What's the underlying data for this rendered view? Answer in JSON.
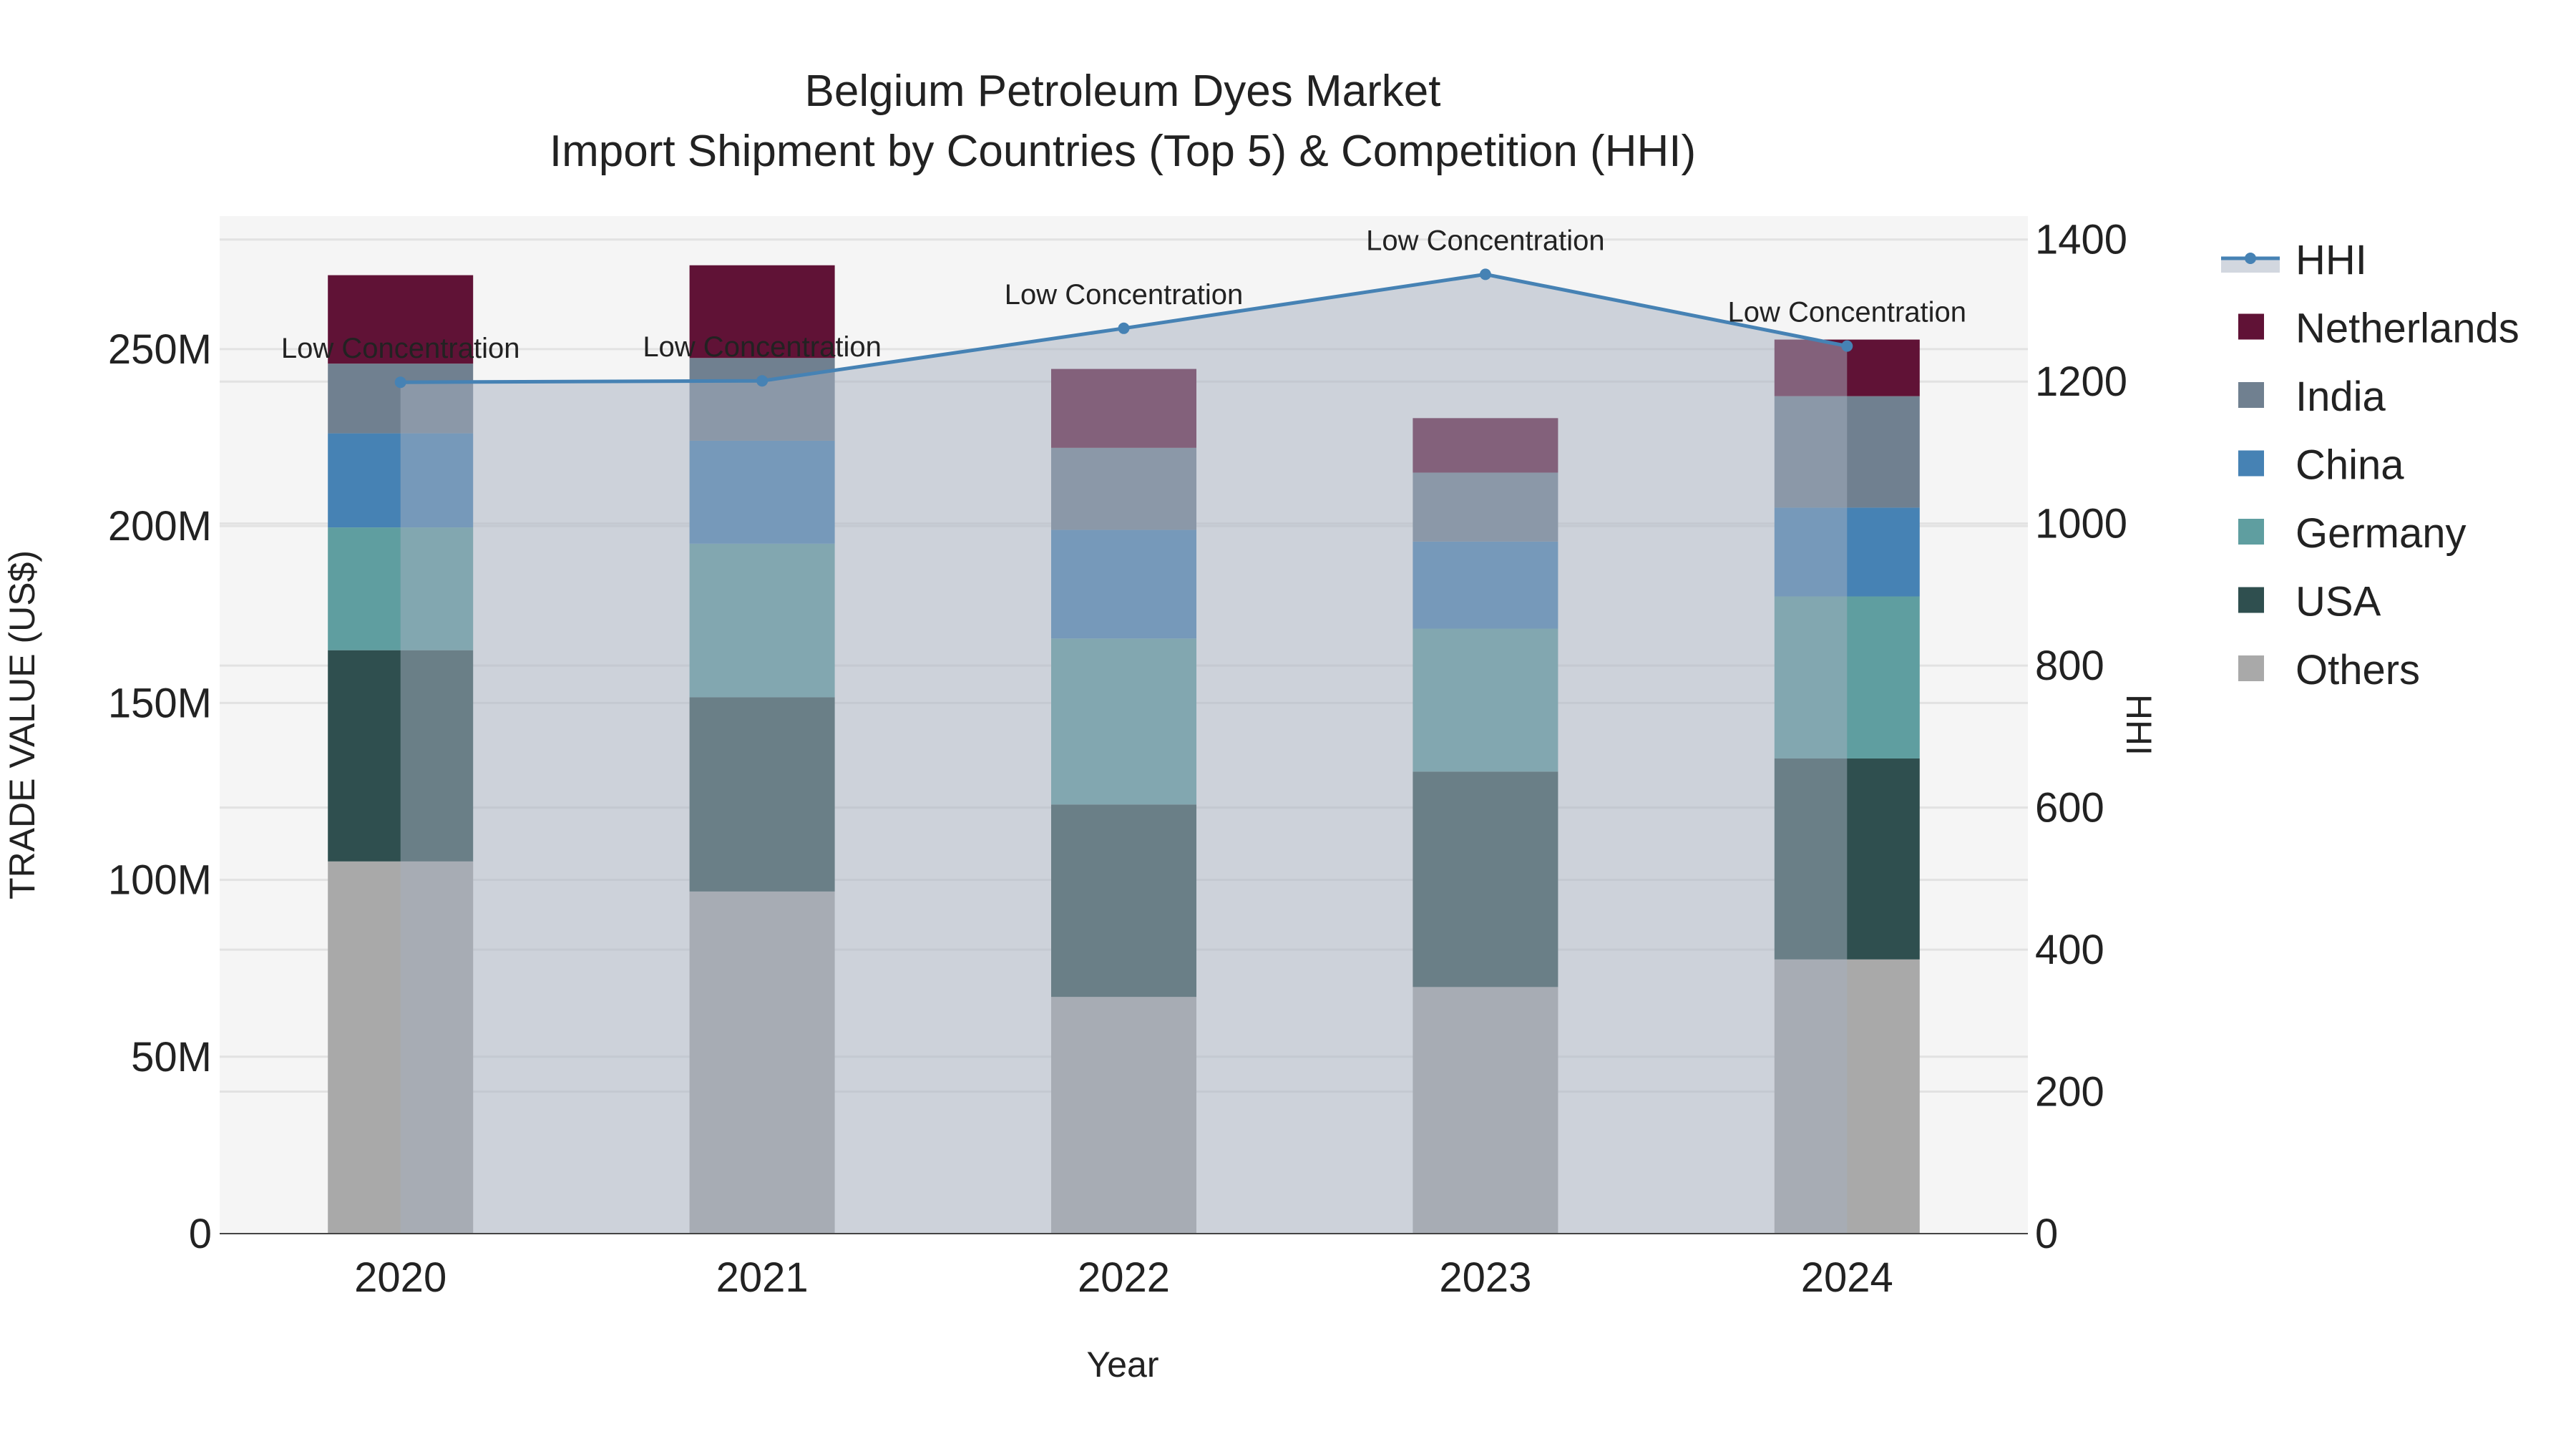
{
  "chart_data": {
    "type": "bar",
    "title": "Belgium Petroleum Dyes Market",
    "subtitle": "Import Shipment by Countries (Top 5) & Competition (HHI)",
    "xlabel": "Year",
    "ylabel": "TRADE VALUE (US$)",
    "y2label": "HHI",
    "categories": [
      "2020",
      "2021",
      "2022",
      "2023",
      "2024"
    ],
    "ylim": [
      0,
      287.6
    ],
    "y2lim": [
      0,
      1433
    ],
    "yticks": [
      0,
      50,
      100,
      150,
      200,
      250
    ],
    "ytick_labels": [
      "0",
      "50M",
      "100M",
      "150M",
      "200M",
      "250M"
    ],
    "y2ticks": [
      0,
      200,
      400,
      600,
      800,
      1000,
      1200,
      1400
    ],
    "y2tick_labels": [
      "0",
      "200",
      "400",
      "600",
      "800",
      "1000",
      "1200",
      "1400"
    ],
    "grid": true,
    "legend_position": "right",
    "value_unit": "million US$",
    "series": [
      {
        "name": "Others",
        "color": "#a9a9a9",
        "values": [
          105.2,
          96.7,
          66.9,
          69.7,
          77.5
        ]
      },
      {
        "name": "USA",
        "color": "#2f4f4f",
        "values": [
          59.7,
          54.9,
          54.4,
          60.9,
          56.8
        ]
      },
      {
        "name": "Germany",
        "color": "#5f9ea0",
        "values": [
          34.7,
          43.4,
          46.9,
          40.4,
          45.8
        ]
      },
      {
        "name": "China",
        "color": "#4682b4",
        "values": [
          26.6,
          29.1,
          30.7,
          24.6,
          25.1
        ]
      },
      {
        "name": "India",
        "color": "#708090",
        "values": [
          19.7,
          23.4,
          23.2,
          19.5,
          31.5
        ]
      },
      {
        "name": "Netherlands",
        "color": "#601236",
        "values": [
          25.0,
          26.2,
          22.3,
          15.4,
          16.0
        ]
      }
    ],
    "hhi": {
      "name": "HHI",
      "color": "#4682b4",
      "values": [
        1199,
        1201,
        1275,
        1351,
        1250
      ],
      "annotations": [
        "Low Concentration",
        "Low Concentration",
        "Low Concentration",
        "Low Concentration",
        "Low Concentration"
      ]
    },
    "legend_order": [
      "HHI",
      "Netherlands",
      "India",
      "China",
      "Germany",
      "USA",
      "Others"
    ]
  }
}
